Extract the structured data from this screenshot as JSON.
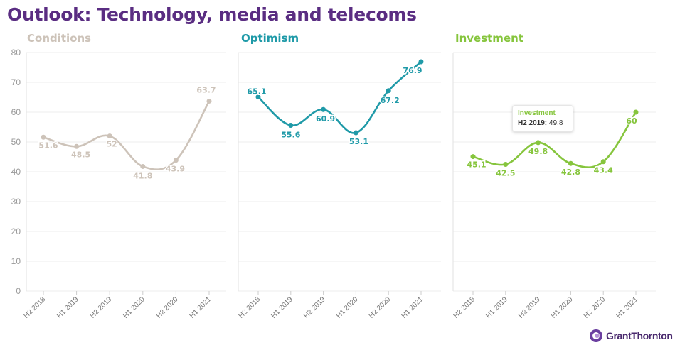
{
  "page": {
    "title": "Outlook: Technology, media and telecoms"
  },
  "tooltip": {
    "title": "Investment",
    "label": "H2 2019:",
    "value": "49.8"
  },
  "logo": {
    "text": "GrantThornton"
  },
  "chart_data": [
    {
      "type": "line",
      "title": "Conditions",
      "color": "#cdc3b9",
      "categories": [
        "H2 2018",
        "H1 2019",
        "H2 2019",
        "H1 2020",
        "H2 2020",
        "H1 2021"
      ],
      "values": [
        51.6,
        48.5,
        52,
        41.8,
        43.9,
        63.7
      ],
      "ylim": [
        0,
        80
      ],
      "yticks": [
        0,
        10,
        20,
        30,
        40,
        50,
        60,
        70,
        80
      ],
      "grid": true
    },
    {
      "type": "line",
      "title": "Optimism",
      "color": "#1f9aa8",
      "categories": [
        "H2 2018",
        "H1 2019",
        "H2 2019",
        "H1 2020",
        "H2 2020",
        "H1 2021"
      ],
      "values": [
        65.1,
        55.6,
        60.9,
        53.1,
        67.2,
        76.9
      ],
      "ylim": [
        0,
        80
      ],
      "grid": true
    },
    {
      "type": "line",
      "title": "Investment",
      "color": "#86c53d",
      "categories": [
        "H2 2018",
        "H1 2019",
        "H2 2019",
        "H1 2020",
        "H2 2020",
        "H1 2021"
      ],
      "values": [
        45.1,
        42.5,
        49.8,
        42.8,
        43.4,
        60
      ],
      "ylim": [
        0,
        80
      ],
      "grid": true
    }
  ]
}
